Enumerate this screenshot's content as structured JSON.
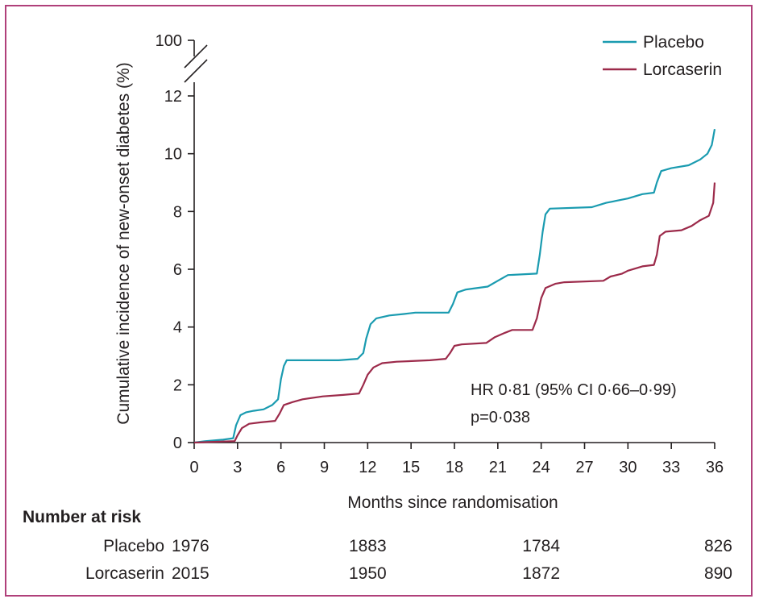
{
  "chart_data": {
    "type": "line",
    "xlabel": "Months since randomisation",
    "ylabel": "Cumulative incidence of new-onset diabetes (%)",
    "x_ticks": [
      0,
      3,
      6,
      9,
      12,
      15,
      18,
      21,
      24,
      27,
      30,
      33,
      36
    ],
    "y_ticks": [
      0,
      2,
      4,
      6,
      8,
      10,
      12
    ],
    "y_break_label": "100",
    "xlim": [
      0,
      36
    ],
    "ylim": [
      0,
      12
    ],
    "legend_position": "top-right",
    "series": [
      {
        "name": "Placebo",
        "color": "#1a9bb0",
        "points": [
          [
            0,
            0
          ],
          [
            0.8,
            0.05
          ],
          [
            2.0,
            0.1
          ],
          [
            2.7,
            0.15
          ],
          [
            2.9,
            0.6
          ],
          [
            3.2,
            0.95
          ],
          [
            3.6,
            1.05
          ],
          [
            4.1,
            1.1
          ],
          [
            4.8,
            1.15
          ],
          [
            5.4,
            1.3
          ],
          [
            5.8,
            1.5
          ],
          [
            6.0,
            2.2
          ],
          [
            6.2,
            2.65
          ],
          [
            6.4,
            2.85
          ],
          [
            8.0,
            2.85
          ],
          [
            10.0,
            2.85
          ],
          [
            11.3,
            2.9
          ],
          [
            11.7,
            3.1
          ],
          [
            11.9,
            3.6
          ],
          [
            12.2,
            4.1
          ],
          [
            12.6,
            4.3
          ],
          [
            13.5,
            4.4
          ],
          [
            14.5,
            4.45
          ],
          [
            15.3,
            4.5
          ],
          [
            17.6,
            4.5
          ],
          [
            17.9,
            4.8
          ],
          [
            18.2,
            5.2
          ],
          [
            18.8,
            5.3
          ],
          [
            20.3,
            5.4
          ],
          [
            21.0,
            5.6
          ],
          [
            21.7,
            5.8
          ],
          [
            23.7,
            5.85
          ],
          [
            23.9,
            6.5
          ],
          [
            24.1,
            7.3
          ],
          [
            24.3,
            7.9
          ],
          [
            24.6,
            8.1
          ],
          [
            27.5,
            8.15
          ],
          [
            28.5,
            8.3
          ],
          [
            30.0,
            8.45
          ],
          [
            31.0,
            8.6
          ],
          [
            31.8,
            8.65
          ],
          [
            32.0,
            9.0
          ],
          [
            32.3,
            9.4
          ],
          [
            33.0,
            9.5
          ],
          [
            34.2,
            9.6
          ],
          [
            35.0,
            9.8
          ],
          [
            35.5,
            10.0
          ],
          [
            35.8,
            10.3
          ],
          [
            36.0,
            10.85
          ]
        ]
      },
      {
        "name": "Lorcaserin",
        "color": "#9c2a4a",
        "points": [
          [
            0,
            0
          ],
          [
            2.8,
            0.05
          ],
          [
            3.0,
            0.25
          ],
          [
            3.3,
            0.5
          ],
          [
            3.8,
            0.65
          ],
          [
            4.6,
            0.7
          ],
          [
            5.6,
            0.75
          ],
          [
            5.9,
            1.0
          ],
          [
            6.2,
            1.3
          ],
          [
            6.8,
            1.4
          ],
          [
            7.5,
            1.5
          ],
          [
            8.9,
            1.6
          ],
          [
            10.3,
            1.65
          ],
          [
            11.4,
            1.7
          ],
          [
            11.7,
            2.0
          ],
          [
            12.0,
            2.35
          ],
          [
            12.4,
            2.6
          ],
          [
            13.0,
            2.75
          ],
          [
            14.0,
            2.8
          ],
          [
            16.3,
            2.85
          ],
          [
            17.4,
            2.9
          ],
          [
            17.7,
            3.1
          ],
          [
            18.0,
            3.35
          ],
          [
            18.5,
            3.4
          ],
          [
            20.2,
            3.45
          ],
          [
            20.8,
            3.65
          ],
          [
            21.5,
            3.8
          ],
          [
            22.0,
            3.9
          ],
          [
            23.4,
            3.9
          ],
          [
            23.7,
            4.3
          ],
          [
            24.0,
            5.0
          ],
          [
            24.3,
            5.35
          ],
          [
            25.0,
            5.5
          ],
          [
            25.6,
            5.55
          ],
          [
            28.3,
            5.6
          ],
          [
            28.8,
            5.75
          ],
          [
            29.6,
            5.85
          ],
          [
            30.0,
            5.95
          ],
          [
            31.0,
            6.1
          ],
          [
            31.8,
            6.15
          ],
          [
            32.0,
            6.5
          ],
          [
            32.2,
            7.15
          ],
          [
            32.6,
            7.3
          ],
          [
            33.7,
            7.35
          ],
          [
            34.4,
            7.5
          ],
          [
            35.0,
            7.7
          ],
          [
            35.6,
            7.85
          ],
          [
            35.9,
            8.3
          ],
          [
            36.0,
            9.0
          ]
        ]
      }
    ],
    "annotations": [
      "HR 0·81 (95% CI 0·66–0·99)",
      "p=0·038"
    ],
    "risk_table": {
      "title": "Number at risk",
      "months": [
        0,
        12,
        24,
        36
      ],
      "rows": [
        {
          "label": "Placebo",
          "values": [
            "1976",
            "1883",
            "1784",
            "826"
          ]
        },
        {
          "label": "Lorcaserin",
          "values": [
            "2015",
            "1950",
            "1872",
            "890"
          ]
        }
      ]
    }
  }
}
